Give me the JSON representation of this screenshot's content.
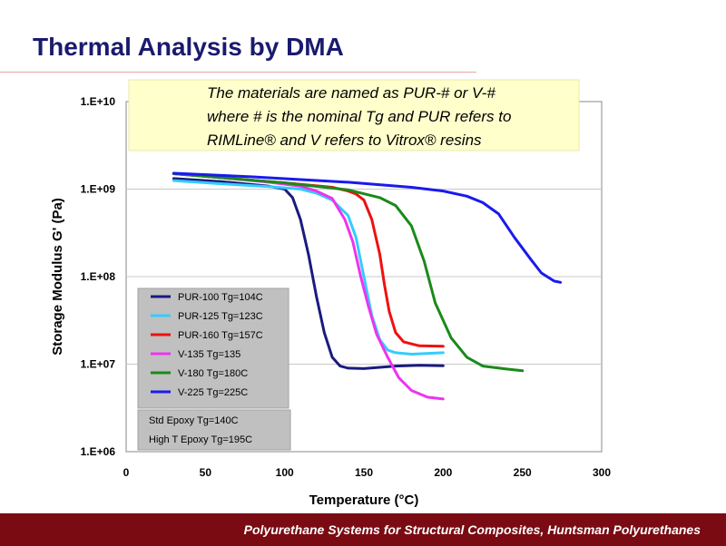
{
  "slide": {
    "title": "Thermal Analysis by DMA",
    "footer": "Polyurethane Systems for Structural Composites, Huntsman Polyurethanes"
  },
  "chart_data": {
    "type": "line",
    "xlabel": "Temperature (°C)",
    "ylabel": "Storage Modulus G' (Pa)",
    "x_ticks": [
      "0",
      "50",
      "100",
      "150",
      "200",
      "250",
      "300"
    ],
    "y_ticks": [
      "1.E+06",
      "1.E+07",
      "1.E+08",
      "1.E+09",
      "1.E+10"
    ],
    "xlim": [
      0,
      300
    ],
    "ylim": [
      1000000,
      10000000000
    ],
    "yscale": "log",
    "grid": "horizontal",
    "legend_position": "lower-left",
    "note": [
      "The materials are named as PUR-# or V-#",
      "where # is the nominal Tg and PUR refers to",
      "RIMLine® and V refers to Vitrox® resins"
    ],
    "extra_legend": [
      "Std Epoxy  Tg=140C",
      "High T Epoxy Tg=195C"
    ],
    "series": [
      {
        "name": "PUR-100  Tg=104C",
        "color": "#1a1a80",
        "points": [
          [
            30,
            1320000000.0
          ],
          [
            60,
            1220000000.0
          ],
          [
            90,
            1080000000.0
          ],
          [
            100,
            1000000000.0
          ],
          [
            105,
            800000000.0
          ],
          [
            110,
            450000000.0
          ],
          [
            115,
            180000000.0
          ],
          [
            120,
            60000000.0
          ],
          [
            125,
            23000000.0
          ],
          [
            130,
            12000000.0
          ],
          [
            135,
            9500000.0
          ],
          [
            140,
            9000000.0
          ],
          [
            150,
            8900000.0
          ],
          [
            160,
            9200000.0
          ],
          [
            170,
            9500000.0
          ],
          [
            185,
            9700000.0
          ],
          [
            200,
            9600000.0
          ]
        ]
      },
      {
        "name": "PUR-125  Tg=123C",
        "color": "#33ccff",
        "points": [
          [
            30,
            1250000000.0
          ],
          [
            60,
            1150000000.0
          ],
          [
            90,
            1070000000.0
          ],
          [
            110,
            1000000000.0
          ],
          [
            120,
            900000000.0
          ],
          [
            130,
            750000000.0
          ],
          [
            140,
            500000000.0
          ],
          [
            145,
            280000000.0
          ],
          [
            150,
            100000000.0
          ],
          [
            155,
            36000000.0
          ],
          [
            160,
            19000000.0
          ],
          [
            165,
            14500000.0
          ],
          [
            170,
            13500000.0
          ],
          [
            180,
            13000000.0
          ],
          [
            200,
            13500000.0
          ]
        ]
      },
      {
        "name": "PUR-160  Tg=157C",
        "color": "#ee1111",
        "points": [
          [
            30,
            1500000000.0
          ],
          [
            60,
            1350000000.0
          ],
          [
            100,
            1180000000.0
          ],
          [
            130,
            1050000000.0
          ],
          [
            140,
            950000000.0
          ],
          [
            145,
            880000000.0
          ],
          [
            150,
            750000000.0
          ],
          [
            155,
            450000000.0
          ],
          [
            160,
            180000000.0
          ],
          [
            163,
            80000000.0
          ],
          [
            166,
            40000000.0
          ],
          [
            170,
            23000000.0
          ],
          [
            175,
            18000000.0
          ],
          [
            185,
            16200000.0
          ],
          [
            200,
            16000000.0
          ]
        ]
      },
      {
        "name": "V-135  Tg=135",
        "color": "#ee33ee",
        "points": [
          [
            30,
            1500000000.0
          ],
          [
            60,
            1350000000.0
          ],
          [
            90,
            1200000000.0
          ],
          [
            110,
            1080000000.0
          ],
          [
            120,
            950000000.0
          ],
          [
            130,
            780000000.0
          ],
          [
            138,
            450000000.0
          ],
          [
            143,
            250000000.0
          ],
          [
            148,
            100000000.0
          ],
          [
            153,
            45000000.0
          ],
          [
            158,
            22000000.0
          ],
          [
            165,
            12000000.0
          ],
          [
            172,
            7000000.0
          ],
          [
            180,
            5000000.0
          ],
          [
            190,
            4200000.0
          ],
          [
            200,
            4000000.0
          ]
        ]
      },
      {
        "name": "V-180  Tg=180C",
        "color": "#1a8a1a",
        "points": [
          [
            30,
            1500000000.0
          ],
          [
            60,
            1350000000.0
          ],
          [
            100,
            1180000000.0
          ],
          [
            140,
            980000000.0
          ],
          [
            160,
            800000000.0
          ],
          [
            170,
            650000000.0
          ],
          [
            180,
            380000000.0
          ],
          [
            188,
            150000000.0
          ],
          [
            195,
            50000000.0
          ],
          [
            205,
            20000000.0
          ],
          [
            215,
            12000000.0
          ],
          [
            225,
            9500000.0
          ],
          [
            240,
            8800000.0
          ],
          [
            250,
            8400000.0
          ]
        ]
      },
      {
        "name": "V-225  Tg=225C",
        "color": "#1a1aee",
        "points": [
          [
            30,
            1520000000.0
          ],
          [
            80,
            1380000000.0
          ],
          [
            140,
            1200000000.0
          ],
          [
            180,
            1050000000.0
          ],
          [
            200,
            950000000.0
          ],
          [
            215,
            830000000.0
          ],
          [
            225,
            700000000.0
          ],
          [
            235,
            520000000.0
          ],
          [
            245,
            280000000.0
          ],
          [
            255,
            160000000.0
          ],
          [
            262,
            110000000.0
          ],
          [
            270,
            89000000.0
          ],
          [
            274,
            86000000.0
          ]
        ]
      }
    ]
  }
}
